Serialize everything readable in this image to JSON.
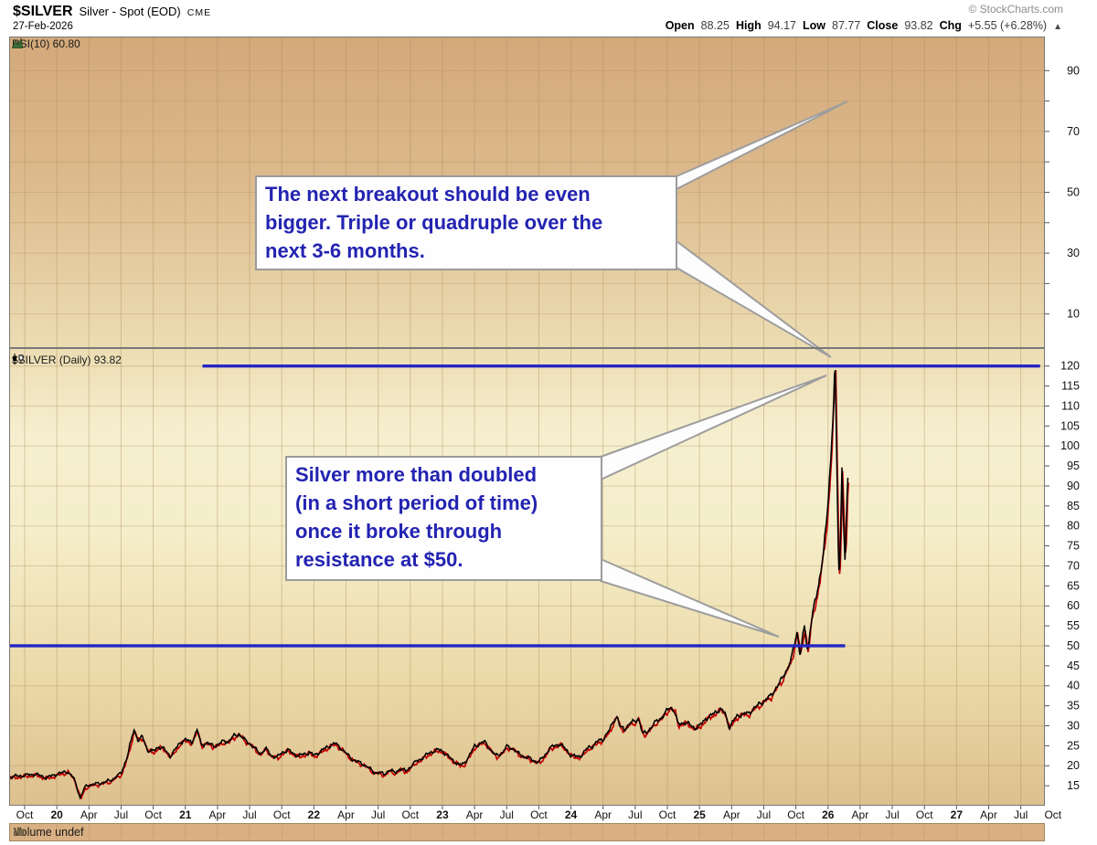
{
  "header": {
    "symbol": "$SILVER",
    "name": "Silver - Spot (EOD)",
    "exchange": "CME",
    "date": "27-Feb-2026",
    "copyright": "© StockCharts.com",
    "quote": {
      "open_label": "Open",
      "open": "88.25",
      "high_label": "High",
      "high": "94.17",
      "low_label": "Low",
      "low": "87.77",
      "close_label": "Close",
      "close": "93.82",
      "chg_label": "Chg",
      "chg": "+5.55 (+6.28%)",
      "direction_icon": "▲"
    }
  },
  "rsi_panel": {
    "label": "RSI(10) 60.80"
  },
  "price_panel": {
    "label": "$SILVER (Daily) 93.82"
  },
  "volume_panel": {
    "label": "Volume undef"
  },
  "annotations": {
    "callout1": {
      "lines": [
        "The next breakout should be even",
        "bigger. Triple or quadruple over the",
        "next 3-6 months."
      ]
    },
    "callout2": {
      "lines": [
        "Silver more than doubled",
        "(in a short period of time)",
        "once it broke through",
        "resistance at $50."
      ]
    },
    "resistance_upper_value": 120,
    "resistance_lower_value": 50,
    "line_color": "#2525c4",
    "text_color": "#2323b2"
  },
  "chart_data": {
    "type": "line",
    "title": "$SILVER Silver - Spot (EOD) CME — Daily close",
    "x_origin": "Oct-2019 (month offset 0), one unit = 1 month",
    "x_axis_labels": [
      {
        "label": "Oct",
        "bold": false
      },
      {
        "label": "20",
        "bold": true
      },
      {
        "label": "Apr",
        "bold": false
      },
      {
        "label": "Jul",
        "bold": false
      },
      {
        "label": "Oct",
        "bold": false
      },
      {
        "label": "21",
        "bold": true
      },
      {
        "label": "Apr",
        "bold": false
      },
      {
        "label": "Jul",
        "bold": false
      },
      {
        "label": "Oct",
        "bold": false
      },
      {
        "label": "22",
        "bold": true
      },
      {
        "label": "Apr",
        "bold": false
      },
      {
        "label": "Jul",
        "bold": false
      },
      {
        "label": "Oct",
        "bold": false
      },
      {
        "label": "23",
        "bold": true
      },
      {
        "label": "Apr",
        "bold": false
      },
      {
        "label": "Jul",
        "bold": false
      },
      {
        "label": "Oct",
        "bold": false
      },
      {
        "label": "24",
        "bold": true
      },
      {
        "label": "Apr",
        "bold": false
      },
      {
        "label": "Jul",
        "bold": false
      },
      {
        "label": "Oct",
        "bold": false
      },
      {
        "label": "25",
        "bold": true
      },
      {
        "label": "Apr",
        "bold": false
      },
      {
        "label": "Jul",
        "bold": false
      },
      {
        "label": "Oct",
        "bold": false
      },
      {
        "label": "26",
        "bold": true
      },
      {
        "label": "Apr",
        "bold": false
      },
      {
        "label": "Jul",
        "bold": false
      },
      {
        "label": "Oct",
        "bold": false
      },
      {
        "label": "27",
        "bold": true
      },
      {
        "label": "Apr",
        "bold": false
      },
      {
        "label": "Jul",
        "bold": false
      },
      {
        "label": "Oct",
        "bold": false
      }
    ],
    "price_axis": {
      "min": 10,
      "max": 124.5,
      "tick_step": 5,
      "labels": [
        120,
        115,
        110,
        105,
        100,
        95,
        90,
        85,
        80,
        75,
        70,
        65,
        60,
        55,
        50,
        45,
        40,
        35,
        30,
        25,
        20,
        15
      ]
    },
    "rsi_axis": {
      "min": 0,
      "max": 101,
      "labels": [
        90,
        70,
        50,
        30,
        10
      ],
      "current": 60.8
    },
    "resistance_lines": [
      {
        "value": 120,
        "from_month": 16.6,
        "to_month": 94.8
      },
      {
        "value": 50,
        "from_month": -1.45,
        "to_month": 76.6
      }
    ],
    "series": {
      "name": "$SILVER close",
      "color": "#000000",
      "shadow_color": "#c40000",
      "points": [
        [
          -1.4,
          17.2
        ],
        [
          0,
          17.6
        ],
        [
          1,
          17.9
        ],
        [
          2,
          17.0
        ],
        [
          3,
          17.9
        ],
        [
          4,
          18.6
        ],
        [
          4.6,
          16.8
        ],
        [
          5.2,
          11.9
        ],
        [
          5.6,
          14.6
        ],
        [
          6,
          15.2
        ],
        [
          7,
          15.6
        ],
        [
          8,
          16.3
        ],
        [
          9,
          18.1
        ],
        [
          9.6,
          22.5
        ],
        [
          10.2,
          29.2
        ],
        [
          10.6,
          26.3
        ],
        [
          11,
          27.2
        ],
        [
          11.5,
          23.8
        ],
        [
          12,
          23.6
        ],
        [
          12.5,
          24.8
        ],
        [
          13,
          24.2
        ],
        [
          13.6,
          22.4
        ],
        [
          14,
          23.8
        ],
        [
          14.5,
          25.8
        ],
        [
          15,
          26.5
        ],
        [
          15.6,
          25.9
        ],
        [
          16.1,
          28.9
        ],
        [
          16.5,
          25.2
        ],
        [
          17,
          25.7
        ],
        [
          17.6,
          25.0
        ],
        [
          18,
          25.2
        ],
        [
          18.6,
          26.2
        ],
        [
          19,
          26.0
        ],
        [
          19.6,
          27.6
        ],
        [
          20,
          27.9
        ],
        [
          20.6,
          26.3
        ],
        [
          21,
          25.6
        ],
        [
          21.6,
          24.0
        ],
        [
          22,
          23.0
        ],
        [
          22.5,
          24.3
        ],
        [
          23,
          22.6
        ],
        [
          23.6,
          22.1
        ],
        [
          24,
          23.3
        ],
        [
          24.6,
          23.9
        ],
        [
          25,
          23.2
        ],
        [
          25.6,
          22.4
        ],
        [
          26,
          22.9
        ],
        [
          26.6,
          23.3
        ],
        [
          27,
          22.6
        ],
        [
          27.6,
          23.5
        ],
        [
          28,
          24.3
        ],
        [
          28.6,
          25.2
        ],
        [
          29,
          25.6
        ],
        [
          29.6,
          24.2
        ],
        [
          30,
          23.1
        ],
        [
          30.6,
          21.6
        ],
        [
          31,
          21.1
        ],
        [
          31.6,
          20.4
        ],
        [
          32,
          19.7
        ],
        [
          32.6,
          18.4
        ],
        [
          33,
          18.3
        ],
        [
          33.6,
          17.9
        ],
        [
          34,
          18.9
        ],
        [
          34.6,
          18.3
        ],
        [
          35,
          19.2
        ],
        [
          35.6,
          18.7
        ],
        [
          36,
          19.7
        ],
        [
          36.6,
          21.2
        ],
        [
          37,
          21.7
        ],
        [
          37.6,
          22.9
        ],
        [
          38,
          23.5
        ],
        [
          38.6,
          24.0
        ],
        [
          39,
          23.7
        ],
        [
          39.6,
          22.2
        ],
        [
          40,
          21.3
        ],
        [
          40.6,
          20.2
        ],
        [
          41,
          20.5
        ],
        [
          41.6,
          22.9
        ],
        [
          42,
          24.9
        ],
        [
          42.6,
          25.7
        ],
        [
          43,
          25.9
        ],
        [
          43.6,
          23.6
        ],
        [
          44,
          22.5
        ],
        [
          44.6,
          23.3
        ],
        [
          45,
          24.8
        ],
        [
          45.6,
          24.3
        ],
        [
          46,
          23.2
        ],
        [
          46.6,
          22.3
        ],
        [
          47,
          22.0
        ],
        [
          47.6,
          21.2
        ],
        [
          48,
          20.9
        ],
        [
          48.6,
          22.8
        ],
        [
          49,
          24.3
        ],
        [
          49.6,
          25.2
        ],
        [
          50,
          25.4
        ],
        [
          50.6,
          23.9
        ],
        [
          51,
          22.6
        ],
        [
          51.6,
          22.3
        ],
        [
          52,
          22.6
        ],
        [
          52.6,
          24.6
        ],
        [
          53,
          24.9
        ],
        [
          53.6,
          26.3
        ],
        [
          54,
          26.6
        ],
        [
          54.6,
          28.9
        ],
        [
          55,
          31.4
        ],
        [
          55.3,
          32.3
        ],
        [
          55.6,
          29.6
        ],
        [
          56,
          29.2
        ],
        [
          56.6,
          30.8
        ],
        [
          57,
          31.1
        ],
        [
          57.3,
          32.0
        ],
        [
          57.7,
          27.9
        ],
        [
          58,
          28.3
        ],
        [
          58.6,
          29.9
        ],
        [
          59,
          31.2
        ],
        [
          59.6,
          32.4
        ],
        [
          60,
          33.9
        ],
        [
          60.3,
          34.8
        ],
        [
          60.7,
          33.4
        ],
        [
          61,
          30.3
        ],
        [
          61.6,
          30.9
        ],
        [
          62,
          30.4
        ],
        [
          62.6,
          29.4
        ],
        [
          63,
          29.9
        ],
        [
          63.6,
          31.9
        ],
        [
          64,
          32.3
        ],
        [
          64.6,
          33.7
        ],
        [
          65,
          34.1
        ],
        [
          65.4,
          33.0
        ],
        [
          65.8,
          29.6
        ],
        [
          66.2,
          31.4
        ],
        [
          66.6,
          32.6
        ],
        [
          67,
          32.9
        ],
        [
          67.6,
          33.1
        ],
        [
          68,
          34.2
        ],
        [
          68.6,
          35.4
        ],
        [
          69,
          36.2
        ],
        [
          69.6,
          37.3
        ],
        [
          70,
          38.9
        ],
        [
          70.6,
          41.2
        ],
        [
          71,
          43.4
        ],
        [
          71.5,
          45.9
        ],
        [
          71.9,
          50.8
        ],
        [
          72.1,
          53.8
        ],
        [
          72.4,
          47.6
        ],
        [
          72.8,
          54.9
        ],
        [
          73.1,
          48.6
        ],
        [
          73.4,
          55.6
        ],
        [
          73.7,
          59.8
        ],
        [
          74,
          63.5
        ],
        [
          74.3,
          68.5
        ],
        [
          74.6,
          74.0
        ],
        [
          74.9,
          82.0
        ],
        [
          75.1,
          90.0
        ],
        [
          75.3,
          99.0
        ],
        [
          75.5,
          110.0
        ],
        [
          75.65,
          121.3
        ],
        [
          75.75,
          107.0
        ],
        [
          75.85,
          90.0
        ],
        [
          75.95,
          75.0
        ],
        [
          76.05,
          66.0
        ],
        [
          76.15,
          76.0
        ],
        [
          76.3,
          94.5
        ],
        [
          76.4,
          86.0
        ],
        [
          76.5,
          78.0
        ],
        [
          76.6,
          70.8
        ],
        [
          76.7,
          80.0
        ],
        [
          76.8,
          88.5
        ],
        [
          76.9,
          93.8
        ]
      ]
    },
    "grid": "quarterly vertical, 10-unit horizontal",
    "legend_position": "none"
  },
  "colors": {
    "bg_top": "#d3a97a",
    "bg_mid": "#f6efcf",
    "bg_bottom": "#ddc08e",
    "grid": "#a98a58",
    "border": "#787878",
    "annotation_blue": "#2525c4",
    "price_black": "#000000",
    "price_red": "#c40000",
    "volume_strip": "#d8b083"
  }
}
